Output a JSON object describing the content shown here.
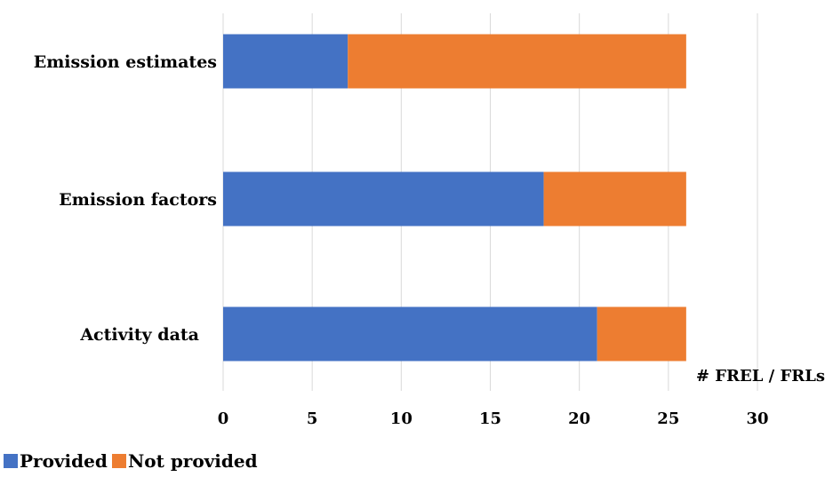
{
  "chart_data": {
    "type": "bar",
    "orientation": "horizontal",
    "stacked": true,
    "categories": [
      "Emission estimates",
      "Emission factors",
      "Activity data"
    ],
    "series": [
      {
        "name": "Provided",
        "values": [
          7,
          18,
          21
        ],
        "color": "#4472C4"
      },
      {
        "name": "Not provided",
        "values": [
          19,
          8,
          5
        ],
        "color": "#ED7D31"
      }
    ],
    "xlabel": "# FREL / FRLs",
    "ylabel": "",
    "xlim": [
      0,
      30
    ],
    "xticks": [
      "0",
      "5",
      "10",
      "15",
      "20",
      "25",
      "30"
    ],
    "grid": true,
    "legend_position": "bottom-left"
  }
}
